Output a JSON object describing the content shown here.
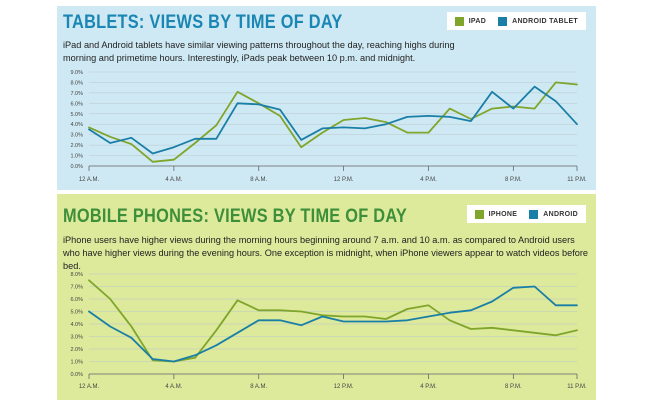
{
  "chart_data": [
    {
      "type": "line",
      "title": "TABLETS: VIEWS BY TIME OF DAY",
      "description": "iPad and Android tablets have similar viewing patterns throughout the day, reaching highs during morning and primetime hours. Interestingly, iPads peak  between 10 p.m. and midnight.",
      "x": [
        0,
        1,
        2,
        3,
        4,
        5,
        6,
        7,
        8,
        9,
        10,
        11,
        12,
        13,
        14,
        15,
        16,
        17,
        18,
        19,
        20,
        21,
        22,
        23
      ],
      "x_ticks": [
        {
          "at": 0,
          "label": "12 A.M."
        },
        {
          "at": 4,
          "label": "4 A.M."
        },
        {
          "at": 8,
          "label": "8 A.M."
        },
        {
          "at": 12,
          "label": "12 P.M."
        },
        {
          "at": 16,
          "label": "4 P.M."
        },
        {
          "at": 20,
          "label": "8 P.M."
        },
        {
          "at": 23,
          "label": "11 P.M."
        }
      ],
      "ylim": [
        0,
        9
      ],
      "y_ticks": [
        "0.0%",
        "1.0%",
        "2.0%",
        "3.0%",
        "4.0%",
        "5.0%",
        "6.0%",
        "7.0%",
        "8.0%",
        "9.0%"
      ],
      "series": [
        {
          "name": "IPAD",
          "color": "#7fa52b",
          "values": [
            3.7,
            2.8,
            2.1,
            0.4,
            0.6,
            2.2,
            3.9,
            7.1,
            6.0,
            4.8,
            1.8,
            3.2,
            4.4,
            4.6,
            4.2,
            3.2,
            3.2,
            5.5,
            4.5,
            5.5,
            5.7,
            5.5,
            8.0,
            7.8
          ]
        },
        {
          "name": "ANDROID TABLET",
          "color": "#1a7fa6",
          "values": [
            3.5,
            2.2,
            2.7,
            1.2,
            1.8,
            2.6,
            2.6,
            6.0,
            5.9,
            5.4,
            2.5,
            3.6,
            3.7,
            3.6,
            4.0,
            4.7,
            4.8,
            4.7,
            4.3,
            7.1,
            5.5,
            7.6,
            6.2,
            4.0
          ]
        }
      ]
    },
    {
      "type": "line",
      "title": "MOBILE PHONES: VIEWS BY TIME OF DAY",
      "description": "iPhone users have higher views during the morning hours beginning around 7 a.m. and 10 a.m. as compared to Android users who have higher views during the evening hours. One exception is midnight, when iPhone viewers appear to watch videos before bed.",
      "x": [
        0,
        1,
        2,
        3,
        4,
        5,
        6,
        7,
        8,
        9,
        10,
        11,
        12,
        13,
        14,
        15,
        16,
        17,
        18,
        19,
        20,
        21,
        22,
        23
      ],
      "x_ticks": [
        {
          "at": 0,
          "label": "12 A.M."
        },
        {
          "at": 4,
          "label": "4 A.M."
        },
        {
          "at": 8,
          "label": "8 A.M."
        },
        {
          "at": 12,
          "label": "12 P.M."
        },
        {
          "at": 16,
          "label": "4 P.M."
        },
        {
          "at": 20,
          "label": "8 P.M."
        },
        {
          "at": 23,
          "label": "11 P.M."
        }
      ],
      "ylim": [
        0,
        8
      ],
      "y_ticks": [
        "0.0%",
        "1.0%",
        "2.0%",
        "3.0%",
        "4.0%",
        "5.0%",
        "6.0%",
        "7.0%",
        "8.0%"
      ],
      "series": [
        {
          "name": "IPHONE",
          "color": "#7fa52b",
          "values": [
            7.5,
            6.0,
            3.8,
            1.1,
            1.0,
            1.3,
            3.5,
            5.9,
            5.1,
            5.1,
            5.0,
            4.7,
            4.6,
            4.6,
            4.4,
            5.2,
            5.5,
            4.3,
            3.6,
            3.7,
            3.5,
            3.3,
            3.1,
            3.5
          ]
        },
        {
          "name": "ANDROID",
          "color": "#1a7fa6",
          "values": [
            5.0,
            3.8,
            2.9,
            1.2,
            1.0,
            1.5,
            2.3,
            3.3,
            4.3,
            4.3,
            3.9,
            4.6,
            4.2,
            4.2,
            4.2,
            4.3,
            4.6,
            4.9,
            5.1,
            5.8,
            6.9,
            7.0,
            5.5,
            5.5
          ]
        }
      ]
    }
  ]
}
